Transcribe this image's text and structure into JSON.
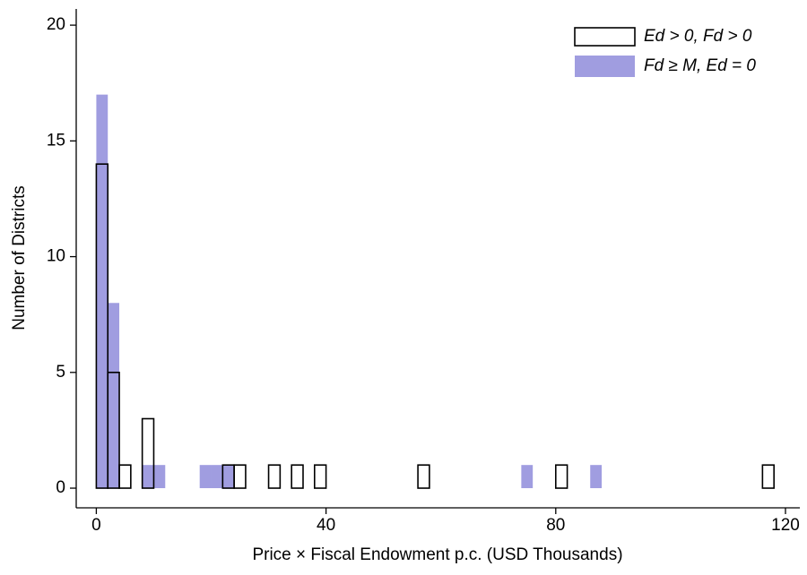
{
  "chart_data": {
    "type": "histogram",
    "x_label": "Price × Fiscal Endowment p.c. (USD Thousands)",
    "y_label": "Number of Districts",
    "bins": [
      0,
      2,
      4,
      6,
      8,
      10,
      12,
      14,
      16,
      18,
      20,
      22,
      24,
      26,
      28,
      30,
      32,
      34,
      36,
      38,
      40,
      42,
      44,
      46,
      48,
      50,
      52,
      54,
      56,
      58,
      60,
      62,
      64,
      66,
      68,
      70,
      72,
      74,
      76,
      78,
      80,
      82,
      84,
      86,
      88,
      90,
      92,
      94,
      96,
      98,
      100,
      102,
      104,
      106,
      108,
      110,
      112,
      114,
      116,
      118
    ],
    "series": [
      {
        "name": "Fd ≥ M, Ed = 0",
        "color": "#a09de0",
        "style": "filled",
        "values": [
          17,
          8,
          0,
          0,
          1,
          1,
          0,
          0,
          0,
          1,
          1,
          1,
          0,
          0,
          0,
          0,
          0,
          0,
          0,
          0,
          0,
          0,
          0,
          0,
          0,
          0,
          0,
          0,
          0,
          0,
          0,
          0,
          0,
          0,
          0,
          0,
          0,
          1,
          0,
          0,
          0,
          0,
          0,
          1,
          0,
          0,
          0,
          0,
          0,
          0,
          0,
          0,
          0,
          0,
          0,
          0,
          0,
          0,
          0
        ]
      },
      {
        "name": "Ed > 0, Fd > 0",
        "color": "#000000",
        "style": "outline",
        "values": [
          14,
          5,
          1,
          0,
          3,
          0,
          0,
          0,
          0,
          0,
          0,
          1,
          1,
          0,
          0,
          1,
          0,
          1,
          0,
          1,
          0,
          0,
          0,
          0,
          0,
          0,
          0,
          0,
          1,
          0,
          0,
          0,
          0,
          0,
          0,
          0,
          0,
          0,
          0,
          0,
          1,
          0,
          0,
          0,
          0,
          0,
          0,
          0,
          0,
          0,
          0,
          0,
          0,
          0,
          0,
          0,
          0,
          0,
          1
        ]
      }
    ],
    "legend_order": [
      1,
      0
    ],
    "legend": "top-right",
    "xlim": [
      -3.5,
      122.5
    ],
    "xticks": [
      0,
      40,
      80,
      120
    ],
    "ylim": [
      -0.85,
      20.7
    ],
    "yticks": [
      0,
      5,
      10,
      15,
      20
    ]
  }
}
